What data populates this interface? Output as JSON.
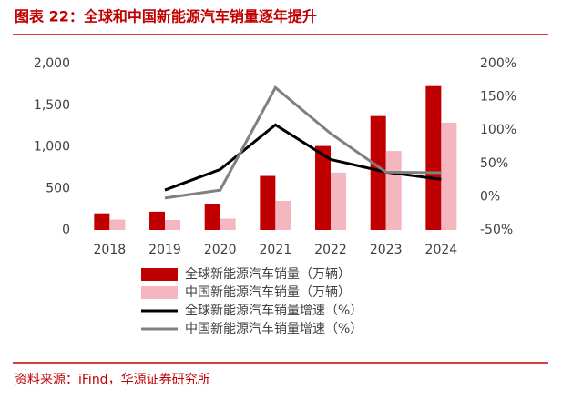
{
  "chart_data": {
    "type": "bar_line",
    "title": "图表 22：全球和中国新能源汽车销量逐年提升",
    "source": "资料来源：iFind，华源证券研究所",
    "categories": [
      "2018",
      "2019",
      "2020",
      "2021",
      "2022",
      "2023",
      "2024"
    ],
    "series": [
      {
        "name": "全球新能源汽车销量（万辆）",
        "type": "bar",
        "color": "#c00000",
        "values": [
          200,
          220,
          310,
          650,
          1010,
          1370,
          1730
        ]
      },
      {
        "name": "中国新能源汽车销量（万辆）",
        "type": "bar",
        "color": "#f4b6bf",
        "values": [
          125,
          120,
          137,
          350,
          690,
          950,
          1290
        ]
      },
      {
        "name": "全球新能源汽车销量增速（%）",
        "type": "line",
        "axis": "y2",
        "color": "#000000",
        "values": [
          null,
          10,
          41,
          108,
          56,
          37,
          26
        ]
      },
      {
        "name": "中国新能源汽车销量增速（%）",
        "type": "line",
        "axis": "y2",
        "color": "#808080",
        "values": [
          null,
          -2,
          10,
          164,
          95,
          37,
          36
        ]
      }
    ],
    "ylim": [
      0,
      2000
    ],
    "yticks": [
      0,
      500,
      {
        "value": 1000,
        "label": "1,000"
      },
      {
        "value": 1500,
        "label": "1,500"
      },
      {
        "value": 2000,
        "label": "2,000"
      }
    ],
    "y2lim": [
      -50,
      200
    ],
    "y2ticks": [
      {
        "value": -50,
        "label": "-50%"
      },
      {
        "value": 0,
        "label": "0%"
      },
      {
        "value": 50,
        "label": "50%"
      },
      {
        "value": 100,
        "label": "100%"
      },
      {
        "value": 150,
        "label": "150%"
      },
      {
        "value": 200,
        "label": "200%"
      }
    ]
  }
}
